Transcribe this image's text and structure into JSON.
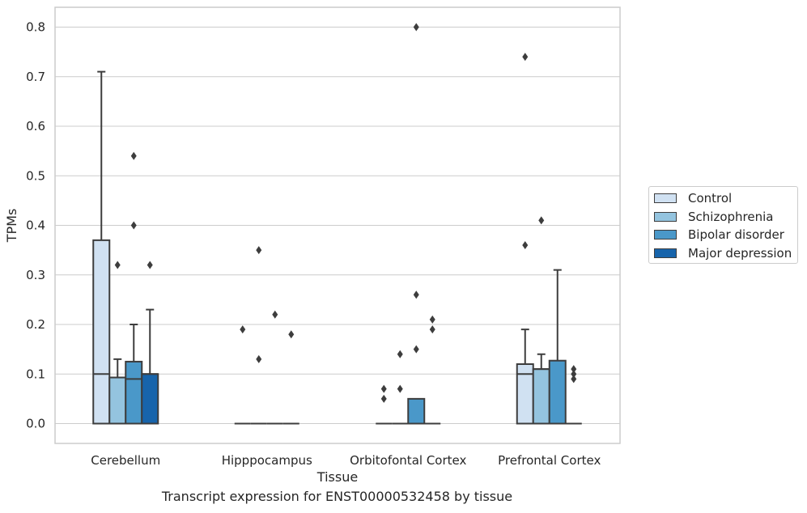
{
  "caption": "Transcript expression for ENST00000532458 by tissue",
  "chart_data": {
    "type": "boxplot",
    "xlabel": "Tissue",
    "ylabel": "TPMs",
    "ylim": [
      -0.04,
      0.84
    ],
    "yticks": [
      0.0,
      0.1,
      0.2,
      0.3,
      0.4,
      0.5,
      0.6,
      0.7,
      0.8
    ],
    "ytick_labels": [
      "0.0",
      "0.1",
      "0.2",
      "0.3",
      "0.4",
      "0.5",
      "0.6",
      "0.7",
      "0.8"
    ],
    "grid": "horizontal",
    "legend_position": "right",
    "categories": [
      "Cerebellum",
      "Hipppocampus",
      "Orbitofontal Cortex",
      "Prefrontal Cortex"
    ],
    "series": [
      {
        "name": "Control",
        "color": "#d0e1f2",
        "boxes": [
          {
            "min": 0.0,
            "q1": 0.0,
            "median": 0.1,
            "q3": 0.37,
            "max": 0.71,
            "outliers": []
          },
          {
            "min": 0.0,
            "q1": 0.0,
            "median": 0.0,
            "q3": 0.0,
            "max": 0.0,
            "outliers": [
              0.19
            ]
          },
          {
            "min": 0.0,
            "q1": 0.0,
            "median": 0.0,
            "q3": 0.0,
            "max": 0.0,
            "outliers": [
              0.07,
              0.05
            ]
          },
          {
            "min": 0.0,
            "q1": 0.0,
            "median": 0.1,
            "q3": 0.12,
            "max": 0.19,
            "outliers": [
              0.74,
              0.36
            ]
          }
        ]
      },
      {
        "name": "Schizophrenia",
        "color": "#94c4df",
        "boxes": [
          {
            "min": 0.0,
            "q1": 0.0,
            "median": 0.093,
            "q3": 0.093,
            "max": 0.13,
            "outliers": [
              0.32
            ]
          },
          {
            "min": 0.0,
            "q1": 0.0,
            "median": 0.0,
            "q3": 0.0,
            "max": 0.0,
            "outliers": [
              0.35,
              0.13
            ]
          },
          {
            "min": 0.0,
            "q1": 0.0,
            "median": 0.0,
            "q3": 0.0,
            "max": 0.0,
            "outliers": [
              0.14,
              0.07
            ]
          },
          {
            "min": 0.0,
            "q1": 0.0,
            "median": 0.11,
            "q3": 0.11,
            "max": 0.14,
            "outliers": [
              0.41
            ]
          }
        ]
      },
      {
        "name": "Bipolar disorder",
        "color": "#4a98c9",
        "boxes": [
          {
            "min": 0.0,
            "q1": 0.0,
            "median": 0.09,
            "q3": 0.125,
            "max": 0.2,
            "outliers": [
              0.54,
              0.4
            ]
          },
          {
            "min": 0.0,
            "q1": 0.0,
            "median": 0.0,
            "q3": 0.0,
            "max": 0.0,
            "outliers": [
              0.22
            ]
          },
          {
            "min": 0.0,
            "q1": 0.0,
            "median": 0.0,
            "q3": 0.05,
            "max": 0.05,
            "outliers": [
              0.8,
              0.26,
              0.15
            ]
          },
          {
            "min": 0.0,
            "q1": 0.0,
            "median": 0.0,
            "q3": 0.127,
            "max": 0.31,
            "outliers": []
          }
        ]
      },
      {
        "name": "Major depression",
        "color": "#1764ab",
        "boxes": [
          {
            "min": 0.0,
            "q1": 0.0,
            "median": 0.1,
            "q3": 0.1,
            "max": 0.23,
            "outliers": [
              0.32
            ]
          },
          {
            "min": 0.0,
            "q1": 0.0,
            "median": 0.0,
            "q3": 0.0,
            "max": 0.0,
            "outliers": [
              0.18
            ]
          },
          {
            "min": 0.0,
            "q1": 0.0,
            "median": 0.0,
            "q3": 0.0,
            "max": 0.0,
            "outliers": [
              0.21,
              0.19
            ]
          },
          {
            "min": 0.0,
            "q1": 0.0,
            "median": 0.0,
            "q3": 0.0,
            "max": 0.0,
            "outliers": [
              0.11,
              0.1,
              0.09
            ]
          }
        ]
      }
    ]
  }
}
